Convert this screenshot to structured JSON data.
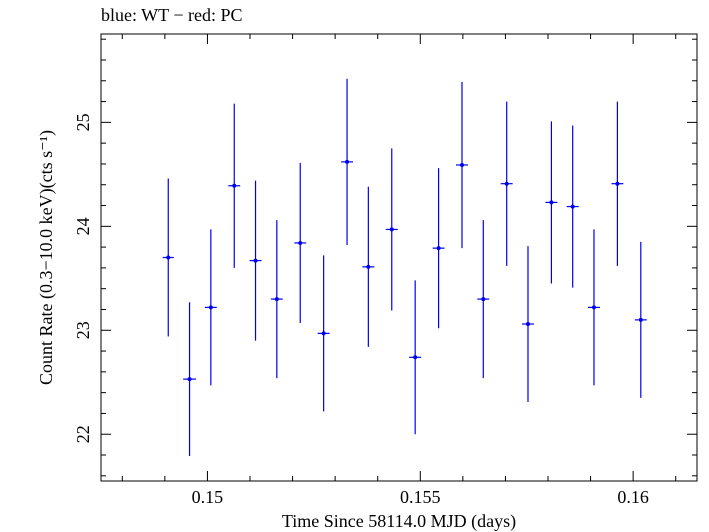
{
  "chart_data": {
    "type": "scatter",
    "title": "blue: WT − red: PC",
    "xlabel": "Time Since 58114.0 MJD (days)",
    "ylabel": "Count Rate (0.3−10.0 keV)(cts s⁻¹)",
    "xlim": [
      0.1475,
      0.1615
    ],
    "ylim": [
      21.55,
      25.85
    ],
    "xticks": [
      0.15,
      0.155,
      0.16
    ],
    "xtick_labels": [
      "0.15",
      "0.155",
      "0.16"
    ],
    "yticks": [
      22,
      23,
      24,
      25
    ],
    "ytick_labels": [
      "22",
      "23",
      "24",
      "25"
    ],
    "grid": false,
    "series": [
      {
        "name": "WT",
        "color": "#0000ee",
        "x": [
          0.14908,
          0.14958,
          0.15008,
          0.15063,
          0.15113,
          0.15163,
          0.15218,
          0.15273,
          0.15328,
          0.15378,
          0.15433,
          0.15488,
          0.15543,
          0.15598,
          0.15648,
          0.15703,
          0.15753,
          0.15808,
          0.15858,
          0.15908,
          0.15963,
          0.16018
        ],
        "xerr": [
          0.00013,
          0.00015,
          0.00014,
          0.00014,
          0.00014,
          0.00014,
          0.00014,
          0.00014,
          0.00014,
          0.00014,
          0.00014,
          0.00014,
          0.00014,
          0.00014,
          0.00014,
          0.00014,
          0.00014,
          0.00014,
          0.00014,
          0.00014,
          0.00014,
          0.00014
        ],
        "y": [
          23.7,
          22.53,
          23.22,
          24.39,
          23.67,
          23.3,
          23.84,
          22.97,
          24.62,
          23.61,
          23.97,
          22.74,
          23.79,
          24.59,
          23.3,
          24.41,
          23.06,
          24.23,
          24.19,
          23.22,
          24.41,
          23.1
        ],
        "yerr": [
          0.76,
          0.74,
          0.75,
          0.79,
          0.77,
          0.76,
          0.77,
          0.75,
          0.8,
          0.77,
          0.78,
          0.74,
          0.77,
          0.8,
          0.76,
          0.79,
          0.75,
          0.78,
          0.78,
          0.75,
          0.79,
          0.75
        ]
      }
    ]
  }
}
